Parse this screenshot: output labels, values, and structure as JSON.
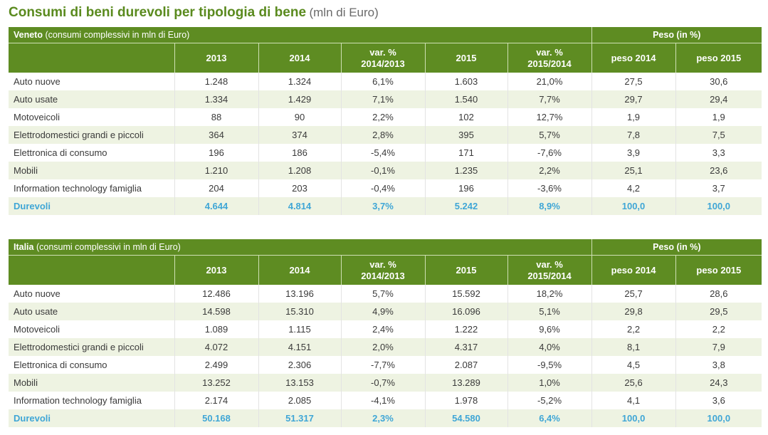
{
  "title": {
    "main": "Consumi di beni durevoli per tipologia di bene",
    "unit": "(mln di Euro)"
  },
  "columns": {
    "c2013": "2013",
    "c2014": "2014",
    "var1_line1": "var. %",
    "var1_line2": "2014/2013",
    "c2015": "2015",
    "var2_line1": "var. %",
    "var2_line2": "2015/2014",
    "peso2014": "peso 2014",
    "peso2015": "peso 2015"
  },
  "peso_header": "Peso (in %)",
  "veneto": {
    "region": "Veneto",
    "subtitle": "(consumi complessivi in mln di Euro)",
    "rows": [
      [
        "Auto nuove",
        "1.248",
        "1.324",
        "6,1%",
        "1.603",
        "21,0%",
        "27,5",
        "30,6"
      ],
      [
        "Auto usate",
        "1.334",
        "1.429",
        "7,1%",
        "1.540",
        "7,7%",
        "29,7",
        "29,4"
      ],
      [
        "Motoveicoli",
        "88",
        "90",
        "2,2%",
        "102",
        "12,7%",
        "1,9",
        "1,9"
      ],
      [
        "Elettrodomestici grandi e piccoli",
        "364",
        "374",
        "2,8%",
        "395",
        "5,7%",
        "7,8",
        "7,5"
      ],
      [
        "Elettronica di consumo",
        "196",
        "186",
        "-5,4%",
        "171",
        "-7,6%",
        "3,9",
        "3,3"
      ],
      [
        "Mobili",
        "1.210",
        "1.208",
        "-0,1%",
        "1.235",
        "2,2%",
        "25,1",
        "23,6"
      ],
      [
        "Information technology famiglia",
        "204",
        "203",
        "-0,4%",
        "196",
        "-3,6%",
        "4,2",
        "3,7"
      ],
      [
        "Durevoli",
        "4.644",
        "4.814",
        "3,7%",
        "5.242",
        "8,9%",
        "100,0",
        "100,0"
      ]
    ]
  },
  "italia": {
    "region": "Italia",
    "subtitle": "(consumi complessivi in mln di Euro)",
    "rows": [
      [
        "Auto nuove",
        "12.486",
        "13.196",
        "5,7%",
        "15.592",
        "18,2%",
        "25,7",
        "28,6"
      ],
      [
        "Auto usate",
        "14.598",
        "15.310",
        "4,9%",
        "16.096",
        "5,1%",
        "29,8",
        "29,5"
      ],
      [
        "Motoveicoli",
        "1.089",
        "1.115",
        "2,4%",
        "1.222",
        "9,6%",
        "2,2",
        "2,2"
      ],
      [
        "Elettrodomestici grandi e piccoli",
        "4.072",
        "4.151",
        "2,0%",
        "4.317",
        "4,0%",
        "8,1",
        "7,9"
      ],
      [
        "Elettronica di consumo",
        "2.499",
        "2.306",
        "-7,7%",
        "2.087",
        "-9,5%",
        "4,5",
        "3,8"
      ],
      [
        "Mobili",
        "13.252",
        "13.153",
        "-0,7%",
        "13.289",
        "1,0%",
        "25,6",
        "24,3"
      ],
      [
        "Information technology famiglia",
        "2.174",
        "2.085",
        "-4,1%",
        "1.978",
        "-5,2%",
        "4,1",
        "3,6"
      ],
      [
        "Durevoli",
        "50.168",
        "51.317",
        "2,3%",
        "54.580",
        "6,4%",
        "100,0",
        "100,0"
      ]
    ]
  }
}
